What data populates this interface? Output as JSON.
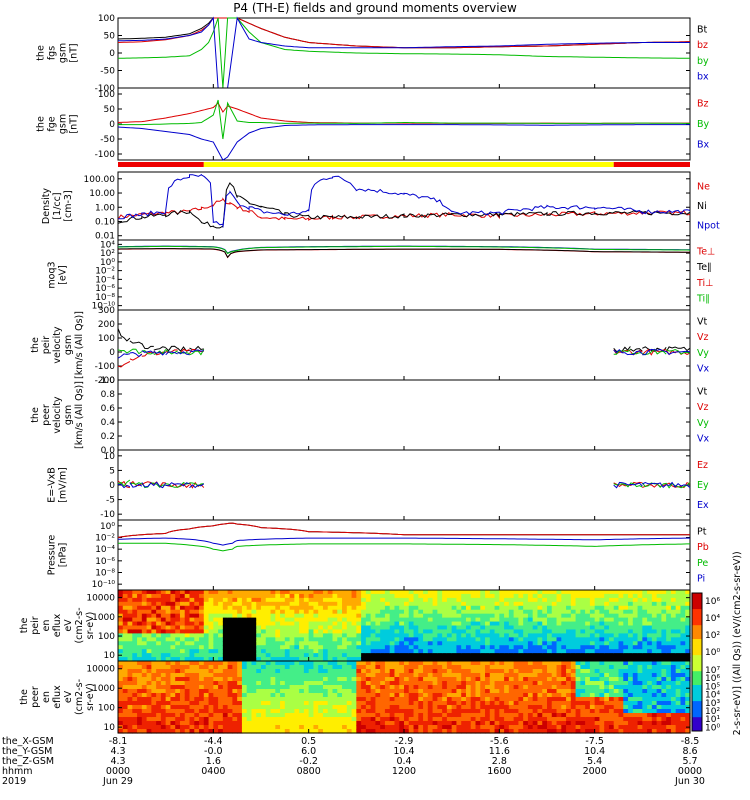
{
  "title": "P4 (TH-E) fields and ground moments overview",
  "chart_data": [
    {
      "type": "line",
      "panel": "fgs-gsm",
      "ylabel": [
        "the",
        "fgs",
        "gsm",
        "[nT]"
      ],
      "yticks": [
        "100",
        "50",
        "0",
        "-50",
        "-100"
      ],
      "ylim": [
        -100,
        100
      ],
      "legend": [
        {
          "name": "Bt",
          "color": "#000000"
        },
        {
          "name": "bz",
          "color": "#dd0000"
        },
        {
          "name": "by",
          "color": "#00bb00"
        },
        {
          "name": "bx",
          "color": "#0000cc"
        }
      ],
      "x_hours": [
        0,
        1,
        2,
        3,
        3.5,
        3.8,
        4,
        4.2,
        4.4,
        4.6,
        5,
        5.5,
        6,
        7,
        8,
        10,
        12,
        14,
        16,
        18,
        20,
        22,
        24
      ],
      "series": [
        {
          "name": "Bt",
          "color": "#000000",
          "values": [
            40,
            42,
            45,
            55,
            70,
            85,
            100,
            100,
            100,
            100,
            100,
            85,
            70,
            45,
            30,
            20,
            15,
            15,
            18,
            20,
            25,
            30,
            32
          ]
        },
        {
          "name": "bz",
          "color": "#dd0000",
          "values": [
            30,
            32,
            38,
            50,
            65,
            80,
            100,
            100,
            100,
            100,
            100,
            85,
            70,
            45,
            30,
            20,
            15,
            15,
            18,
            20,
            25,
            30,
            32
          ]
        },
        {
          "name": "by",
          "color": "#00bb00",
          "values": [
            -15,
            -14,
            -12,
            -8,
            10,
            30,
            60,
            100,
            -100,
            100,
            100,
            60,
            30,
            10,
            5,
            0,
            -2,
            -3,
            -5,
            -10,
            -12,
            -14,
            -15
          ]
        },
        {
          "name": "bx",
          "color": "#0000cc",
          "values": [
            35,
            36,
            40,
            50,
            60,
            80,
            100,
            -100,
            -100,
            -100,
            100,
            40,
            30,
            20,
            15,
            15,
            15,
            18,
            20,
            25,
            28,
            30,
            30
          ]
        }
      ]
    },
    {
      "type": "line",
      "panel": "fge-gsm",
      "ylabel": [
        "the",
        "fge",
        "gsm",
        "[nT]"
      ],
      "yticks": [
        "100",
        "50",
        "0",
        "-50",
        "-100"
      ],
      "ylim": [
        -120,
        120
      ],
      "legend": [
        {
          "name": "Bz",
          "color": "#dd0000"
        },
        {
          "name": "By",
          "color": "#00bb00"
        },
        {
          "name": "Bx",
          "color": "#0000cc"
        }
      ],
      "x_hours": [
        0,
        1,
        2,
        3,
        3.5,
        4,
        4.2,
        4.4,
        4.6,
        5,
        5.5,
        6,
        7,
        8,
        10,
        12,
        14,
        16,
        18,
        20,
        22,
        24
      ],
      "series": [
        {
          "name": "Bz",
          "color": "#dd0000",
          "values": [
            5,
            8,
            20,
            35,
            45,
            55,
            70,
            40,
            60,
            50,
            35,
            20,
            10,
            5,
            3,
            3,
            2,
            2,
            3,
            2,
            3,
            3
          ]
        },
        {
          "name": "By",
          "color": "#00bb00",
          "values": [
            -2,
            -2,
            0,
            2,
            5,
            30,
            80,
            -50,
            70,
            10,
            5,
            5,
            2,
            3,
            2,
            5,
            3,
            3,
            2,
            2,
            3,
            2
          ]
        },
        {
          "name": "Bx",
          "color": "#0000cc",
          "values": [
            -10,
            -15,
            -25,
            -35,
            -50,
            -60,
            -90,
            -120,
            -110,
            -60,
            -30,
            -15,
            -5,
            -3,
            -2,
            -2,
            -2,
            -3,
            -4,
            -3,
            -2,
            -2
          ]
        }
      ]
    },
    {
      "type": "bar",
      "panel": "mode-bar",
      "segments": [
        {
          "start": 0,
          "end": 3.6,
          "color": "#ee0000"
        },
        {
          "start": 3.6,
          "end": 20.8,
          "color": "#ffff00"
        },
        {
          "start": 20.8,
          "end": 24,
          "color": "#ee0000"
        }
      ]
    },
    {
      "type": "line",
      "panel": "density",
      "scale": "log",
      "ylabel": [
        "Density",
        "[1/cc]",
        "[cm-3]"
      ],
      "yticks": [
        "100.00",
        "10.00",
        "1.00",
        "0.10",
        "0.01"
      ],
      "ylim": [
        0.005,
        300
      ],
      "legend": [
        {
          "name": "Ne",
          "color": "#dd0000"
        },
        {
          "name": "Ni",
          "color": "#000000"
        },
        {
          "name": "Npot",
          "color": "#0000cc"
        }
      ],
      "x_hours": [
        0,
        1,
        2,
        3,
        3.5,
        4,
        4.4,
        4.7,
        5,
        5.5,
        6,
        7,
        8,
        9,
        10,
        12,
        14,
        16,
        18,
        20,
        22,
        24
      ],
      "series": [
        {
          "name": "Ne",
          "color": "#dd0000",
          "values": [
            0.2,
            0.3,
            0.4,
            0.5,
            0.8,
            1.5,
            3,
            2,
            1,
            0.5,
            0.2,
            0.15,
            0.15,
            0.2,
            0.2,
            0.25,
            0.3,
            0.25,
            0.3,
            0.35,
            0.4,
            0.4
          ]
        },
        {
          "name": "Ni",
          "color": "#000000",
          "values": [
            0.1,
            0.2,
            0.3,
            0.5,
            0.08,
            0.05,
            0.05,
            40,
            5,
            2,
            1,
            0.3,
            0.2,
            0.2,
            0.2,
            0.25,
            0.3,
            0.3,
            0.35,
            0.4,
            0.4,
            0.4
          ]
        },
        {
          "name": "Npot",
          "color": "#0000cc",
          "values": [
            0.2,
            0.3,
            0.5,
            150,
            150,
            0.1,
            0.05,
            10,
            2,
            1,
            0.5,
            0.3,
            0.5,
            150,
            20,
            8,
            0.4,
            0.4,
            1,
            1,
            0.5,
            0.5
          ]
        }
      ]
    },
    {
      "type": "line",
      "panel": "moq3",
      "scale": "log",
      "ylabel": [
        "moq3",
        "[eV]"
      ],
      "yticks": [
        "10⁴",
        "10²",
        "10⁰",
        "10⁻²",
        "10⁻⁴",
        "10⁻⁶",
        "10⁻⁸",
        "10⁻¹⁰"
      ],
      "ylim": [
        1e-11,
        100000.0
      ],
      "legend": [
        {
          "name": "Te⊥",
          "color": "#dd0000"
        },
        {
          "name": "Te∥",
          "color": "#000000"
        },
        {
          "name": "Ti⊥",
          "color": "#dd0000"
        },
        {
          "name": "Ti∥",
          "color": "#00bb00"
        }
      ],
      "x_hours": [
        0,
        2,
        4,
        4.6,
        5,
        6,
        8,
        12,
        16,
        20,
        24
      ],
      "series": [
        {
          "name": "Ti",
          "color": "#0000cc",
          "values": [
            3000,
            4000,
            3000,
            100,
            500,
            2000,
            3000,
            4000,
            3000,
            800,
            600
          ]
        },
        {
          "name": "Ti∥",
          "color": "#00bb00",
          "values": [
            2500,
            3500,
            2500,
            80,
            400,
            1800,
            2500,
            3500,
            2500,
            700,
            500
          ]
        },
        {
          "name": "Te",
          "color": "#dd0000",
          "values": [
            800,
            1000,
            800,
            10,
            200,
            500,
            600,
            800,
            700,
            200,
            150
          ]
        },
        {
          "name": "Te∥",
          "color": "#000000",
          "values": [
            900,
            1100,
            900,
            12,
            220,
            550,
            650,
            850,
            750,
            220,
            160
          ]
        }
      ]
    },
    {
      "type": "line",
      "panel": "peir-velocity",
      "ylabel": [
        "the",
        "peir",
        "velocity",
        "gsm",
        "[km/s (All Qs)]"
      ],
      "yticks": [
        "300",
        "200",
        "100",
        "0",
        "-100",
        "-200"
      ],
      "ylim": [
        -200,
        300
      ],
      "legend": [
        {
          "name": "Vt",
          "color": "#000000"
        },
        {
          "name": "Vz",
          "color": "#dd0000"
        },
        {
          "name": "Vy",
          "color": "#00bb00"
        },
        {
          "name": "Vx",
          "color": "#0000cc"
        }
      ],
      "x_hours": [
        0,
        0.5,
        1,
        1.5,
        2,
        2.5,
        3,
        3.6,
        20.8,
        21.5,
        22,
        23,
        24
      ],
      "series": [
        {
          "name": "Vt",
          "color": "#000000",
          "values": [
            150,
            80,
            50,
            30,
            25,
            20,
            20,
            20,
            20,
            20,
            25,
            20,
            20
          ]
        },
        {
          "name": "Vz",
          "color": "#dd0000",
          "values": [
            -100,
            -50,
            -20,
            -10,
            0,
            0,
            0,
            0,
            0,
            0,
            0,
            0,
            0
          ]
        },
        {
          "name": "Vy",
          "color": "#00bb00",
          "values": [
            20,
            10,
            5,
            0,
            0,
            0,
            0,
            0,
            0,
            0,
            0,
            0,
            0
          ]
        },
        {
          "name": "Vx",
          "color": "#0000cc",
          "values": [
            -30,
            -20,
            -10,
            -5,
            0,
            0,
            0,
            0,
            0,
            0,
            0,
            0,
            0
          ]
        }
      ]
    },
    {
      "type": "line",
      "panel": "peer-velocity",
      "ylabel": [
        "the",
        "peer",
        "velocity",
        "gsm",
        "[km/s (All Qs)]"
      ],
      "yticks": [
        "1.0",
        "0.8",
        "0.6",
        "0.4",
        "0.2",
        "0.0"
      ],
      "ylim": [
        0,
        1
      ],
      "legend": [
        {
          "name": "Vt",
          "color": "#000000"
        },
        {
          "name": "Vz",
          "color": "#dd0000"
        },
        {
          "name": "Vy",
          "color": "#00bb00"
        },
        {
          "name": "Vx",
          "color": "#0000cc"
        }
      ],
      "series": []
    },
    {
      "type": "line",
      "panel": "efield",
      "ylabel": [
        "E=-VxB",
        "[mV/m]"
      ],
      "yticks": [
        "10",
        "5",
        "0",
        "-5",
        "-10"
      ],
      "ylim": [
        -12,
        12
      ],
      "legend": [
        {
          "name": "Ez",
          "color": "#dd0000"
        },
        {
          "name": "Ey",
          "color": "#00bb00"
        },
        {
          "name": "Ex",
          "color": "#0000cc"
        }
      ],
      "x_hours": [
        0,
        0.5,
        1,
        2,
        3,
        3.6,
        20.8,
        22,
        24
      ],
      "series": [
        {
          "name": "Ez",
          "color": "#dd0000",
          "values": [
            1,
            0,
            1,
            0,
            0,
            0,
            0,
            0,
            0
          ]
        },
        {
          "name": "Ey",
          "color": "#00bb00",
          "values": [
            0,
            1,
            0,
            0,
            0,
            0,
            0,
            0,
            0
          ]
        },
        {
          "name": "Ex",
          "color": "#0000cc",
          "values": [
            0,
            0,
            0,
            0,
            0,
            0,
            0,
            0,
            0
          ]
        }
      ]
    },
    {
      "type": "line",
      "panel": "pressure",
      "scale": "log",
      "ylabel": [
        "Pressure",
        "[nPa]"
      ],
      "yticks": [
        "10⁰",
        "10⁻²",
        "10⁻⁴",
        "10⁻⁶",
        "10⁻⁸",
        "10⁻¹⁰"
      ],
      "ylim": [
        1e-11,
        10
      ],
      "legend": [
        {
          "name": "Pt",
          "color": "#000000"
        },
        {
          "name": "Pb",
          "color": "#dd0000"
        },
        {
          "name": "Pe",
          "color": "#00bb00"
        },
        {
          "name": "Pi",
          "color": "#0000cc"
        }
      ],
      "x_hours": [
        0,
        2,
        3,
        4,
        4.4,
        4.8,
        5,
        6,
        8,
        12,
        16,
        20,
        24
      ],
      "series": [
        {
          "name": "Pt",
          "color": "#000000",
          "values": [
            0.01,
            0.05,
            0.3,
            1,
            2,
            3,
            2,
            0.5,
            0.1,
            0.03,
            0.03,
            0.03,
            0.03
          ]
        },
        {
          "name": "Pb",
          "color": "#dd0000",
          "values": [
            0.01,
            0.05,
            0.3,
            1,
            2,
            3,
            2,
            0.5,
            0.1,
            0.03,
            0.03,
            0.03,
            0.03
          ]
        },
        {
          "name": "Pe",
          "color": "#00bb00",
          "values": [
            0.001,
            0.001,
            0.0005,
            0.0001,
            5e-05,
            0.0001,
            0.0003,
            0.0005,
            0.0008,
            0.0008,
            0.0006,
            0.0003,
            0.0008
          ]
        },
        {
          "name": "Pi",
          "color": "#0000cc",
          "values": [
            0.005,
            0.008,
            0.005,
            0.001,
            0.0005,
            0.001,
            0.003,
            0.005,
            0.008,
            0.008,
            0.006,
            0.004,
            0.008
          ]
        }
      ]
    },
    {
      "type": "heatmap",
      "panel": "peir-en-eflux",
      "scale": "log",
      "ylabel": [
        "the",
        "peir",
        "en",
        "eflux",
        "eV",
        "(cm2-s-",
        "sr-eV)"
      ],
      "yticks": [
        "10000",
        "1000",
        "100",
        "10"
      ],
      "ylim": [
        5,
        25000
      ]
    },
    {
      "type": "heatmap",
      "panel": "peer-en-eflux",
      "scale": "log",
      "ylabel": [
        "the",
        "peer",
        "en",
        "eflux",
        "eV",
        "(cm2-s-",
        "sr-eV)"
      ],
      "yticks": [
        "10000",
        "1000",
        "100",
        "10"
      ],
      "ylim": [
        5,
        25000
      ]
    },
    {
      "type": "colorbar",
      "label": "[eV/(cm2-s-sr-eV)] ((All Qs)) (eV/(cm2-s-sr-eV))",
      "ticks_top": [
        "10⁶",
        "10⁴",
        "10²",
        "10⁰"
      ],
      "ticks_bottom": [
        "10⁷",
        "10⁶",
        "10⁵",
        "10⁴",
        "10³",
        "10²",
        "10¹",
        "10⁰"
      ],
      "ylim": [
        1,
        10000000
      ]
    }
  ],
  "footer": {
    "rows": [
      {
        "label": "the_X-GSM",
        "values": [
          "-8.1",
          "-4.4",
          "0.5",
          "-2.9",
          "-5.6",
          "-7.5",
          "-8.5"
        ]
      },
      {
        "label": "the_Y-GSM",
        "values": [
          "4.3",
          "-0.0",
          "6.0",
          "10.4",
          "11.6",
          "10.4",
          "8.6"
        ]
      },
      {
        "label": "the_Z-GSM",
        "values": [
          "4.3",
          "1.6",
          "-0.2",
          "0.4",
          "2.8",
          "5.4",
          "5.7"
        ]
      },
      {
        "label": "hhmm",
        "values": [
          "0000",
          "0400",
          "0800",
          "1200",
          "1600",
          "2000",
          "0000"
        ]
      },
      {
        "label": "2019",
        "values": [
          "Jun 29",
          "",
          "",
          "",
          "",
          "",
          "Jun 30"
        ]
      }
    ]
  }
}
